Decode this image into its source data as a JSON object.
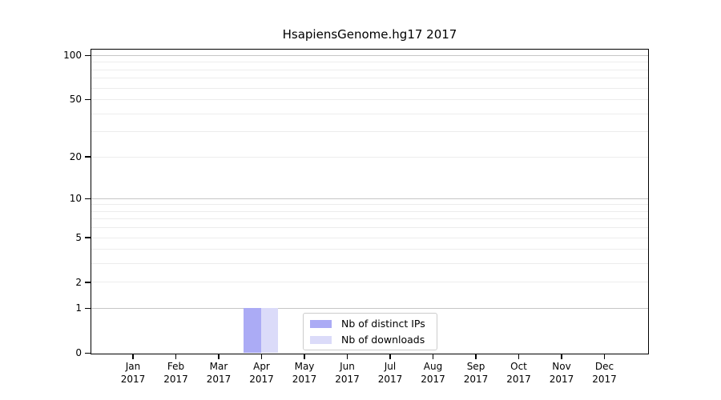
{
  "title": "HsapiensGenome.hg17 2017",
  "chart_data": {
    "type": "bar",
    "title": "HsapiensGenome.hg17 2017",
    "xlabel": "",
    "ylabel": "",
    "y_scale": "log1p",
    "ylim": [
      0,
      100
    ],
    "grid": true,
    "legend_position": "lower center",
    "categories": [
      "Jan 2017",
      "Feb 2017",
      "Mar 2017",
      "Apr 2017",
      "May 2017",
      "Jun 2017",
      "Jul 2017",
      "Aug 2017",
      "Sep 2017",
      "Oct 2017",
      "Nov 2017",
      "Dec 2017"
    ],
    "y_ticks": [
      0,
      1,
      2,
      5,
      10,
      20,
      50,
      100
    ],
    "y_minor_gridlines": [
      2,
      3,
      4,
      5,
      6,
      7,
      8,
      9,
      20,
      30,
      40,
      50,
      60,
      70,
      80,
      90
    ],
    "y_major_gridlines": [
      1,
      10,
      100
    ],
    "series": [
      {
        "name": "Nb of distinct IPs",
        "color": "#ababf5",
        "values": [
          0,
          0,
          0,
          1,
          0,
          0,
          0,
          0,
          0,
          0,
          0,
          0
        ]
      },
      {
        "name": "Nb of downloads",
        "color": "#dbdbf9",
        "values": [
          0,
          0,
          0,
          1,
          0,
          0,
          0,
          0,
          0,
          0,
          0,
          0
        ]
      }
    ],
    "colors": {
      "grid_minor": "#ececec",
      "grid_major": "#c6c6c6",
      "axis": "#000000",
      "legend_border": "#cccccc",
      "text": "#000000"
    }
  }
}
